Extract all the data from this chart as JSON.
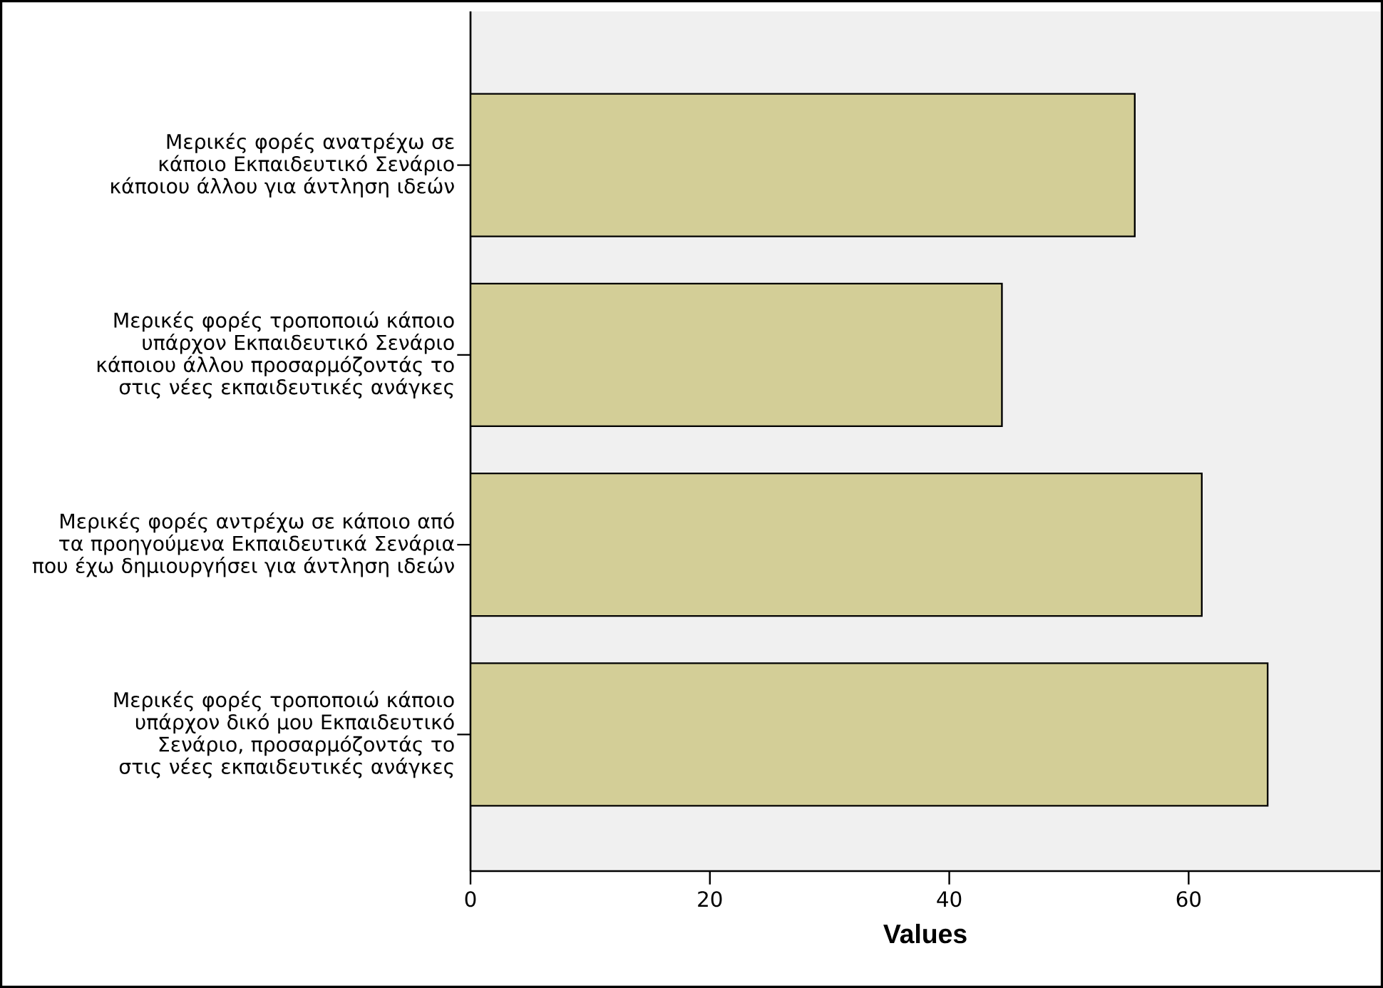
{
  "chart_data": {
    "type": "bar",
    "orientation": "horizontal",
    "xlabel": "Values",
    "categories": [
      "Μερικές φορές ανατρέχω σε κάποιο Εκπαιδευτικό Σενάριο κάποιου άλλου για άντληση ιδεών",
      "Μερικές φορές τροποποιώ κάποιο υπάρχον Εκπαιδευτικό Σενάριο κάποιου άλλου προσαρμόζοντάς το στις νέες εκπαιδευτικές ανάγκες",
      "Μερικές φορές αντρέχω σε κάποιο από τα προηγούμενα Εκπαιδευτικά Σενάρια που έχω δημιουργήσει για άντληση ιδεών",
      "Μερικές φορές τροποποιώ κάποιο υπάρχον δικό μου Εκπαιδευτικό Σενάριο, προσαρμόζοντάς το στις νέες εκπαιδευτικές ανάγκες"
    ],
    "values": [
      55.5,
      44.4,
      61.1,
      66.6
    ],
    "color": "#d3ce97",
    "xlim": [
      0,
      76
    ],
    "xticks": [
      0,
      20,
      40,
      60
    ],
    "grid": false
  }
}
